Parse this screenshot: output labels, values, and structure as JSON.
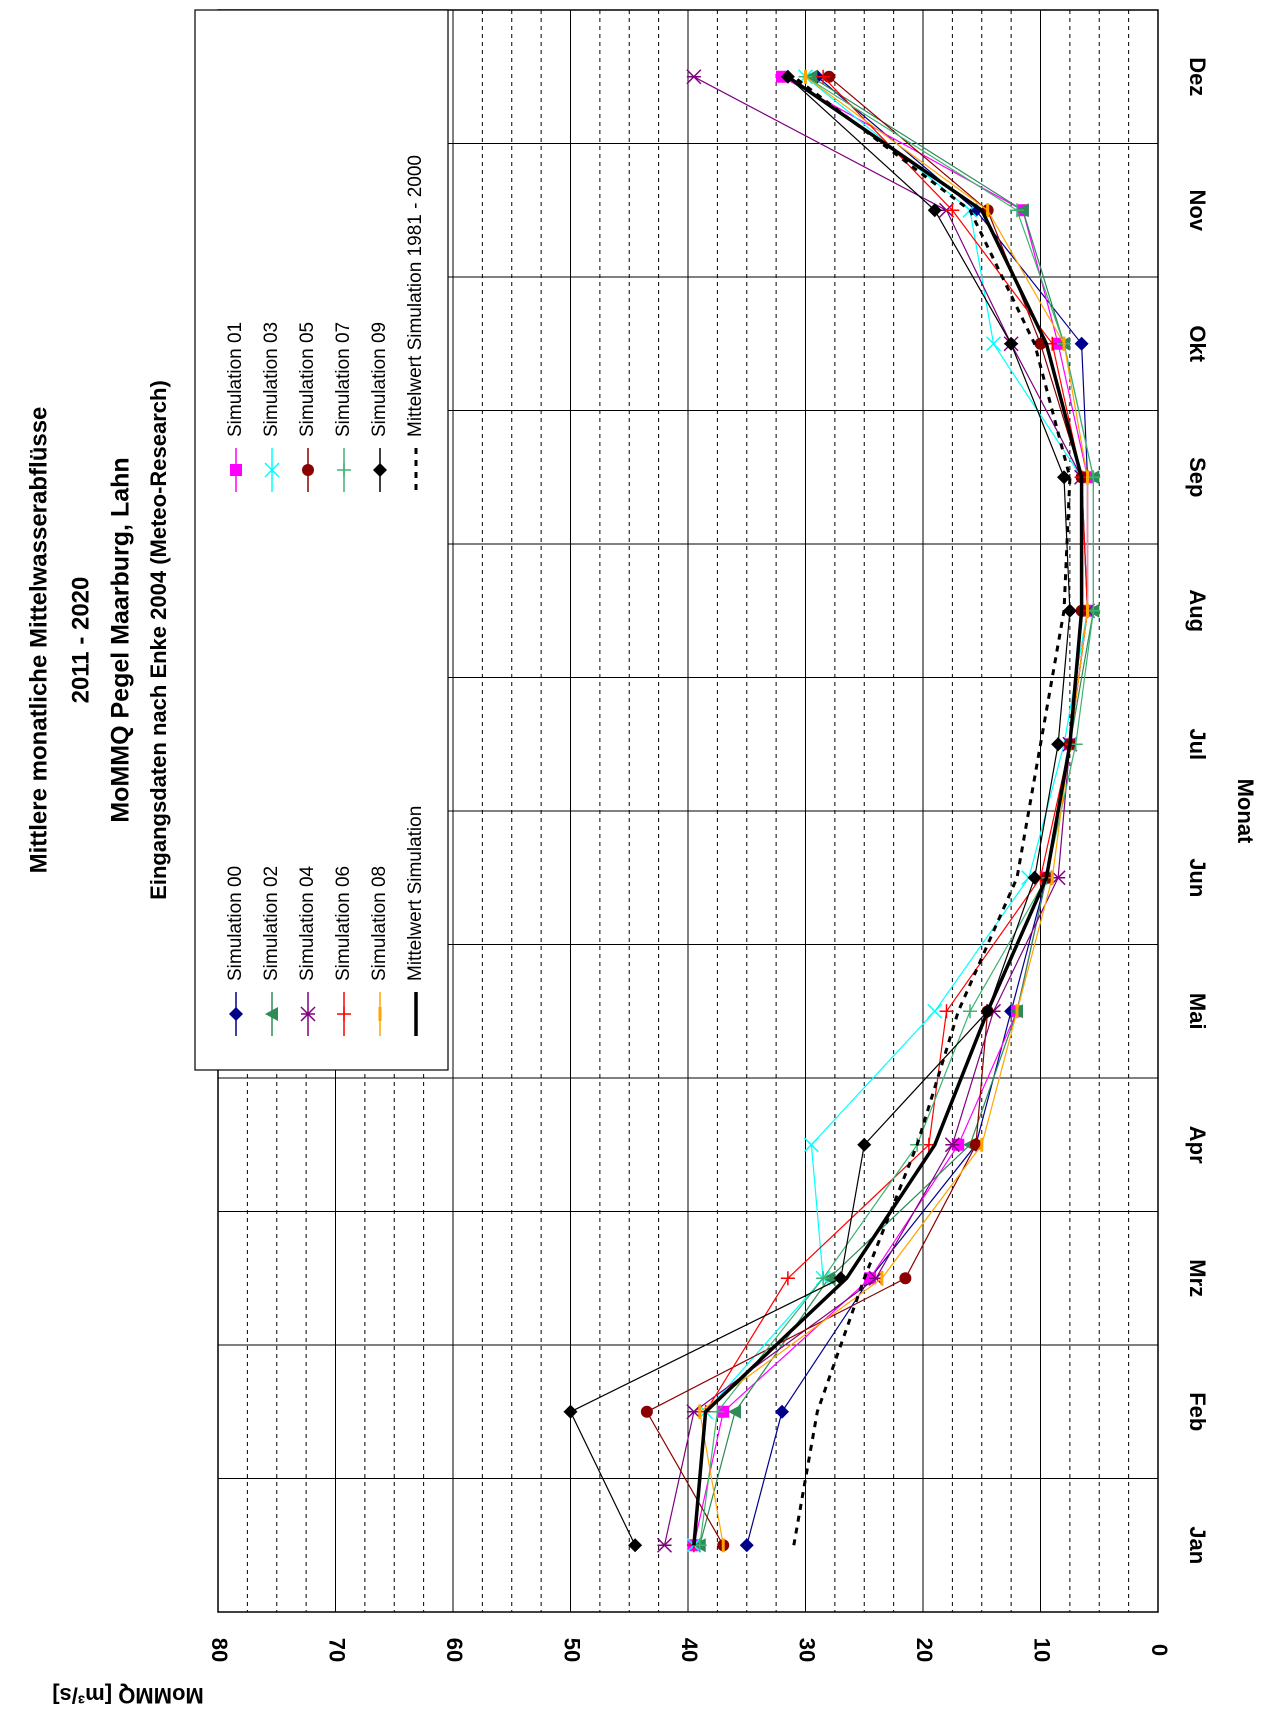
{
  "chart_data": {
    "type": "line",
    "title": [
      "Mittlere monatliche Mittelwasserabflüsse",
      "2011 - 2020",
      "MoMMQ Pegel Maarburg, Lahn",
      "Eingangsdaten nach Enke 2004 (Meteo-Research)"
    ],
    "xlabel": "Monat",
    "ylabel": "MoMMQ [m³/s]",
    "categories": [
      "Jan",
      "Feb",
      "Mrz",
      "Apr",
      "Mai",
      "Jun",
      "Jul",
      "Aug",
      "Sep",
      "Okt",
      "Nov",
      "Dez"
    ],
    "ylim": [
      0,
      80
    ],
    "yticks": [
      0,
      10,
      20,
      30,
      40,
      50,
      60,
      70,
      80
    ],
    "grid": true,
    "orientation": "rotated-90",
    "legend_position": "top-left",
    "series": [
      {
        "name": "Simulation 00",
        "color": "#00008B",
        "marker": "diamond",
        "values": [
          35.0,
          32.0,
          24.5,
          15.5,
          12.5,
          9.5,
          7.5,
          6.0,
          6.0,
          6.5,
          15.5,
          29.0
        ]
      },
      {
        "name": "Simulation 01",
        "color": "#FF00FF",
        "marker": "square",
        "values": [
          39.5,
          37.0,
          24.5,
          17.0,
          12.0,
          9.5,
          7.5,
          6.0,
          6.0,
          8.5,
          11.5,
          32.0
        ]
      },
      {
        "name": "Simulation 02",
        "color": "#2E8B57",
        "marker": "triangle",
        "values": [
          39.0,
          36.0,
          28.0,
          16.0,
          12.0,
          9.5,
          7.5,
          5.5,
          5.5,
          8.0,
          11.5,
          29.5
        ]
      },
      {
        "name": "Simulation 03",
        "color": "#00FFFF",
        "marker": "x",
        "values": [
          39.5,
          38.5,
          28.5,
          29.5,
          19.0,
          11.0,
          8.0,
          6.0,
          6.5,
          14.0,
          16.0,
          30.0
        ]
      },
      {
        "name": "Simulation 04",
        "color": "#800080",
        "marker": "star",
        "values": [
          42.0,
          39.5,
          24.0,
          17.5,
          14.0,
          8.5,
          7.5,
          6.0,
          6.5,
          12.5,
          18.0,
          39.5
        ]
      },
      {
        "name": "Simulation 05",
        "color": "#8B0000",
        "marker": "circle",
        "values": [
          37.0,
          43.5,
          21.5,
          15.5,
          14.5,
          9.5,
          7.5,
          6.5,
          6.5,
          10.0,
          14.5,
          28.0
        ]
      },
      {
        "name": "Simulation 06",
        "color": "#FF0000",
        "marker": "plus",
        "values": [
          39.5,
          38.5,
          31.5,
          19.5,
          18.0,
          10.0,
          7.5,
          6.0,
          6.5,
          9.0,
          17.5,
          28.5
        ]
      },
      {
        "name": "Simulation 07",
        "color": "#3CB371",
        "marker": "plus",
        "values": [
          39.0,
          37.5,
          28.5,
          20.5,
          16.0,
          9.5,
          7.0,
          5.5,
          5.5,
          8.0,
          12.0,
          30.0
        ]
      },
      {
        "name": "Simulation 08",
        "color": "#FFA500",
        "marker": "bar",
        "values": [
          37.0,
          39.0,
          23.5,
          15.0,
          12.0,
          9.0,
          7.5,
          6.0,
          6.0,
          8.0,
          14.5,
          30.0
        ]
      },
      {
        "name": "Simulation 09",
        "color": "#000000",
        "marker": "diamond",
        "values": [
          44.5,
          50.0,
          27.0,
          25.0,
          14.5,
          10.5,
          8.5,
          7.5,
          8.0,
          12.5,
          19.0,
          31.5
        ]
      },
      {
        "name": "Mittelwert Simulation",
        "color": "#000000",
        "marker": "none",
        "line": "bold",
        "values": [
          39.5,
          38.5,
          26.5,
          19.0,
          14.5,
          9.5,
          7.5,
          6.5,
          6.5,
          9.5,
          15.0,
          31.5
        ]
      },
      {
        "name": "Mittelwert Simulation 1981 - 2000",
        "color": "#000000",
        "marker": "none",
        "line": "dashed",
        "values": [
          31.0,
          29.0,
          25.0,
          20.5,
          17.0,
          12.0,
          10.0,
          8.0,
          7.5,
          10.5,
          16.0,
          31.0
        ]
      }
    ]
  }
}
